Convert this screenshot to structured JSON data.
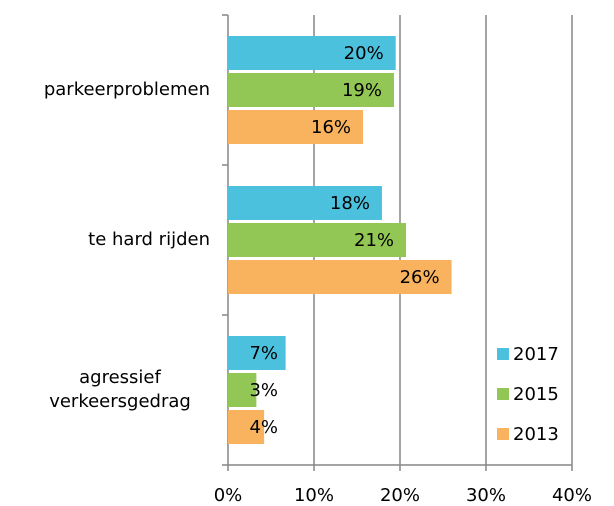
{
  "chart_data": {
    "type": "bar",
    "orientation": "horizontal",
    "categories": [
      "parkeerproblemen",
      "te hard rijden",
      "agressief verkeersgedrag"
    ],
    "series": [
      {
        "name": "2017",
        "color": "#4bc1dd",
        "values": [
          19.5,
          17.9,
          6.7
        ],
        "value_labels": [
          "20%",
          "18%",
          "7%"
        ]
      },
      {
        "name": "2015",
        "color": "#93c755",
        "values": [
          19.3,
          20.7,
          3.3
        ],
        "value_labels": [
          "19%",
          "21%",
          "3%"
        ]
      },
      {
        "name": "2013",
        "color": "#f9b35f",
        "values": [
          15.7,
          26.0,
          4.2
        ],
        "value_labels": [
          "16%",
          "26%",
          "4%"
        ]
      }
    ],
    "xlim": [
      0,
      40
    ],
    "xticks": [
      {
        "value": 0,
        "label": "0%"
      },
      {
        "value": 10,
        "label": "10%"
      },
      {
        "value": 20,
        "label": "20%"
      },
      {
        "value": 30,
        "label": "30%"
      },
      {
        "value": 40,
        "label": "40%"
      }
    ],
    "grid": true,
    "legend": "right"
  }
}
